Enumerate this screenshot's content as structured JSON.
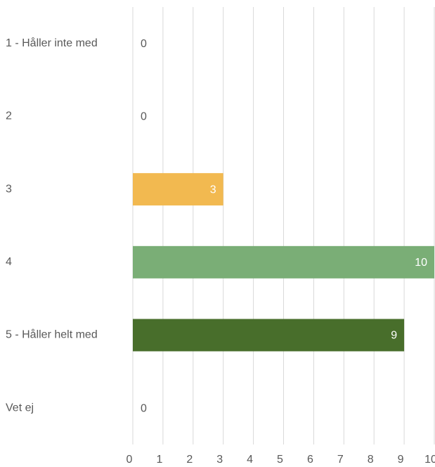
{
  "chart_data": {
    "type": "bar",
    "orientation": "horizontal",
    "categories": [
      "1 - Håller inte med",
      "2",
      "3",
      "4",
      "5 - Håller helt med",
      "Vet ej"
    ],
    "values": [
      0,
      0,
      3,
      10,
      9,
      0
    ],
    "colors": [
      null,
      null,
      "#f2b950",
      "#7aae76",
      "#486e2b",
      null
    ],
    "xlim": [
      0,
      10
    ],
    "xticks": [
      0,
      1,
      2,
      3,
      4,
      5,
      6,
      7,
      8,
      9,
      10
    ],
    "grid": true
  }
}
